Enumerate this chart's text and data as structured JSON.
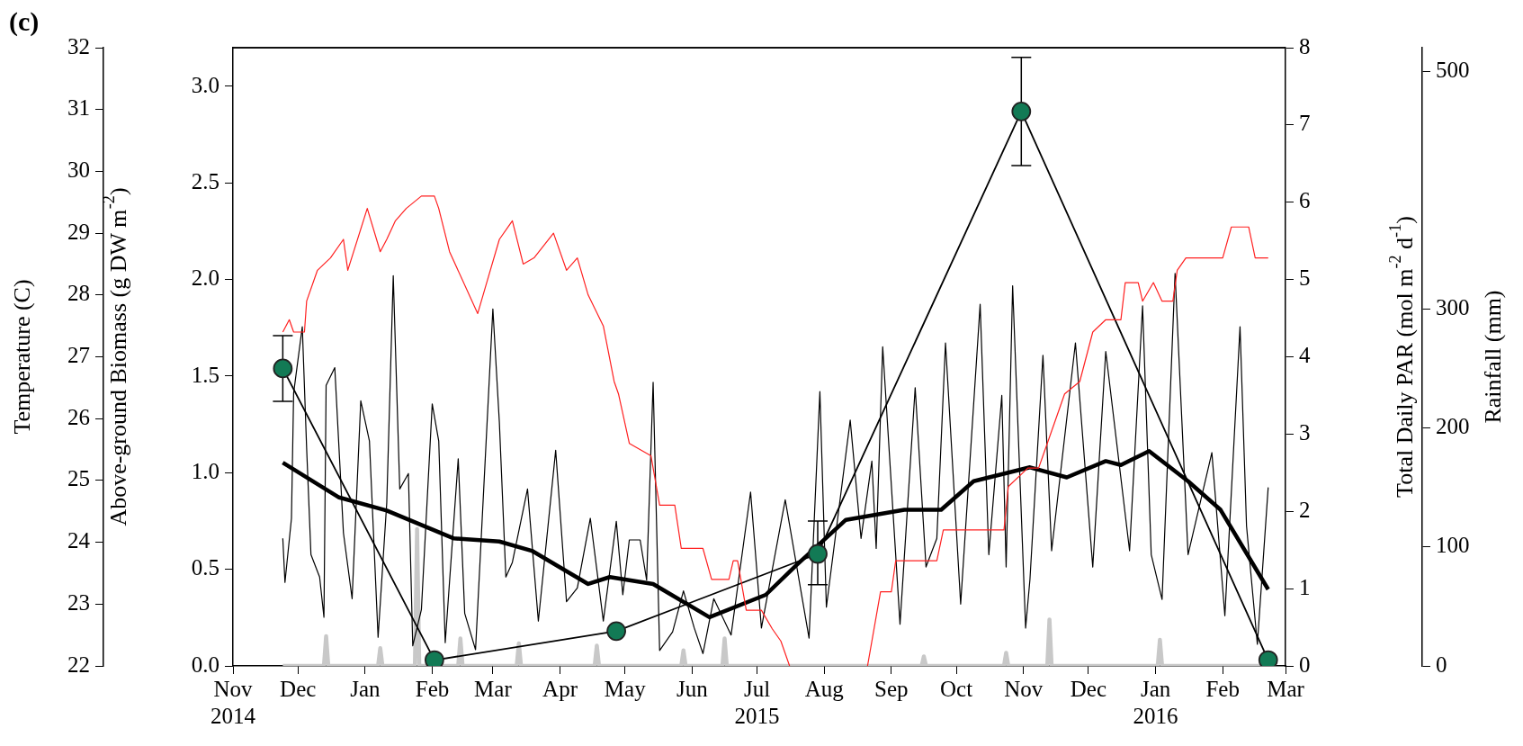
{
  "chart_data": [
    {
      "type": "line",
      "annotations": [
        "(c)"
      ],
      "xlim": [
        "2014-11-01",
        "2016-03-01"
      ],
      "xticks": [
        {
          "value": "2014-11-01",
          "label": "Nov\n2014"
        },
        {
          "value": "2014-12-01",
          "label": "Dec"
        },
        {
          "value": "2015-01-01",
          "label": "Jan"
        },
        {
          "value": "2015-02-01",
          "label": "Feb"
        },
        {
          "value": "2015-03-01",
          "label": "Mar"
        },
        {
          "value": "2015-04-01",
          "label": "Apr"
        },
        {
          "value": "2015-05-01",
          "label": "May"
        },
        {
          "value": "2015-06-01",
          "label": "Jun"
        },
        {
          "value": "2015-07-01",
          "label": "Jul\n2015"
        },
        {
          "value": "2015-08-01",
          "label": "Aug"
        },
        {
          "value": "2015-09-01",
          "label": "Sep"
        },
        {
          "value": "2015-10-01",
          "label": "Oct"
        },
        {
          "value": "2015-11-01",
          "label": "Nov"
        },
        {
          "value": "2015-12-01",
          "label": "Dec"
        },
        {
          "value": "2016-01-01",
          "label": "Jan\n2016"
        },
        {
          "value": "2016-02-01",
          "label": "Feb"
        },
        {
          "value": "2016-03-01",
          "label": "Mar"
        }
      ],
      "ylabel": "Above-ground Biomass (g DW m$^{-2}$)",
      "ylim": [
        0,
        3.2
      ],
      "yticks": [
        {
          "value": 0,
          "label": "0.0"
        },
        {
          "value": 0.5,
          "label": "0.5"
        },
        {
          "value": 1,
          "label": "1.0"
        },
        {
          "value": 1.5,
          "label": "1.5"
        },
        {
          "value": 2,
          "label": "2.0"
        },
        {
          "value": 2.5,
          "label": "2.5"
        },
        {
          "value": 3,
          "label": "3.0"
        }
      ],
      "y2label": "Total Daily PAR (mol m$^{-2}$ d$^{-1}$)",
      "y2lim": [
        0,
        8
      ],
      "y2ticks": [
        0,
        1,
        2,
        3,
        4,
        5,
        6,
        7,
        8
      ],
      "y3label": "Rainfall (mm)",
      "y3lim": [
        0,
        520
      ],
      "y3ticks": [
        0,
        100,
        200,
        300,
        500
      ],
      "grid": false,
      "legend": false,
      "marker": "none",
      "series": [
        {
          "axis": "y3",
          "color": "#c8c8c8",
          "x": [
            "2014-11-24",
            "2014-12-13",
            "2014-12-14",
            "2014-12-15",
            "2015-01-07",
            "2015-01-08",
            "2015-01-09",
            "2015-01-24",
            "2015-01-25",
            "2015-01-26",
            "2015-02-13",
            "2015-02-14",
            "2015-02-15",
            "2015-03-12",
            "2015-03-13",
            "2015-03-14",
            "2015-04-17",
            "2015-04-18",
            "2015-04-19",
            "2015-05-27",
            "2015-05-28",
            "2015-05-29",
            "2015-06-15",
            "2015-06-16",
            "2015-06-17",
            "2015-09-15",
            "2015-09-16",
            "2015-09-17",
            "2015-10-23",
            "2015-10-24",
            "2015-10-25",
            "2015-11-12",
            "2015-11-13",
            "2015-11-14",
            "2016-01-02",
            "2016-01-03",
            "2016-01-04",
            "2016-02-22"
          ],
          "values": [
            0,
            0,
            25,
            0,
            0,
            15,
            0,
            0,
            115,
            0,
            0,
            23,
            0,
            0,
            19,
            0,
            0,
            17,
            0,
            0,
            13,
            0,
            0,
            23,
            0,
            0,
            8,
            0,
            0,
            11,
            0,
            0,
            39,
            0,
            0,
            22,
            0,
            0
          ]
        },
        {
          "axis": "y2",
          "color": "#000000",
          "x": [
            "2014-11-24",
            "2014-11-25",
            "2014-11-28",
            "2014-11-29",
            "2014-12-03",
            "2014-12-05",
            "2014-12-07",
            "2014-12-11",
            "2014-12-13",
            "2014-12-14",
            "2014-12-18",
            "2014-12-22",
            "2014-12-26",
            "2014-12-30",
            "2015-01-03",
            "2015-01-07",
            "2015-01-11",
            "2015-01-14",
            "2015-01-17",
            "2015-01-21",
            "2015-01-23",
            "2015-01-27",
            "2015-02-01",
            "2015-02-04",
            "2015-02-07",
            "2015-02-13",
            "2015-02-16",
            "2015-02-21",
            "2015-03-01",
            "2015-03-04",
            "2015-03-07",
            "2015-03-10",
            "2015-03-17",
            "2015-03-22",
            "2015-03-30",
            "2015-04-04",
            "2015-04-09",
            "2015-04-15",
            "2015-04-21",
            "2015-04-27",
            "2015-04-30",
            "2015-05-03",
            "2015-05-08",
            "2015-05-11",
            "2015-05-14",
            "2015-05-17",
            "2015-05-23",
            "2015-05-28",
            "2015-06-02",
            "2015-06-06",
            "2015-06-11",
            "2015-06-19",
            "2015-06-28",
            "2015-07-03",
            "2015-07-14",
            "2015-07-25",
            "2015-07-30",
            "2015-08-02",
            "2015-08-13",
            "2015-08-18",
            "2015-08-23",
            "2015-08-25",
            "2015-08-28",
            "2015-09-05",
            "2015-09-12",
            "2015-09-17",
            "2015-09-22",
            "2015-09-26",
            "2015-10-03",
            "2015-10-12",
            "2015-10-16",
            "2015-10-22",
            "2015-10-24",
            "2015-10-27",
            "2015-11-02",
            "2015-11-04",
            "2015-11-10",
            "2015-11-14",
            "2015-11-25",
            "2015-12-03",
            "2015-12-09",
            "2015-12-20",
            "2015-12-26",
            "2015-12-30",
            "2016-01-04",
            "2016-01-10",
            "2016-01-16",
            "2016-01-27",
            "2016-02-02",
            "2016-02-09",
            "2016-02-12",
            "2016-02-17",
            "2016-02-22"
          ],
          "values": [
            1.65,
            1.08,
            1.91,
            3.53,
            4.39,
            2.82,
            1.44,
            1.15,
            0.63,
            3.63,
            3.86,
            1.72,
            0.87,
            3.43,
            2.91,
            0.37,
            2.11,
            5.05,
            2.29,
            2.49,
            0.26,
            0.73,
            3.39,
            2.91,
            0.3,
            2.68,
            0.68,
            0.21,
            4.62,
            3.15,
            1.15,
            1.34,
            2.29,
            0.58,
            2.79,
            0.83,
            1.01,
            1.91,
            0.58,
            1.87,
            0.92,
            1.63,
            1.63,
            1.11,
            3.67,
            0.2,
            0.44,
            0.97,
            0.49,
            0.16,
            0.87,
            0.4,
            2.25,
            0.49,
            2.15,
            0.36,
            3.55,
            0.76,
            3.18,
            1.65,
            2.65,
            1.52,
            4.13,
            0.54,
            3.6,
            1.28,
            1.65,
            4.18,
            0.8,
            4.68,
            1.44,
            3.5,
            1.28,
            4.92,
            0.49,
            1.12,
            4.02,
            1.49,
            4.18,
            1.28,
            4.07,
            1.49,
            4.66,
            1.44,
            0.86,
            5.08,
            1.44,
            2.76,
            0.65,
            4.39,
            1.81,
            0.28,
            2.31
          ]
        },
        {
          "axis": "y2",
          "color": "#000000",
          "x": [
            "2014-11-24",
            "2014-12-20",
            "2015-01-11",
            "2015-02-11",
            "2015-03-04",
            "2015-03-19",
            "2015-04-14",
            "2015-04-24",
            "2015-05-14",
            "2015-06-09",
            "2015-07-05",
            "2015-07-19",
            "2015-08-11",
            "2015-09-07",
            "2015-09-24",
            "2015-10-09",
            "2015-11-04",
            "2015-11-21",
            "2015-12-09",
            "2015-12-16",
            "2015-12-29",
            "2016-01-16",
            "2016-01-31",
            "2016-02-22"
          ],
          "values": [
            2.63,
            2.18,
            2.01,
            1.65,
            1.61,
            1.49,
            1.06,
            1.15,
            1.06,
            0.63,
            0.92,
            1.3,
            1.89,
            2.02,
            2.02,
            2.39,
            2.57,
            2.44,
            2.65,
            2.6,
            2.78,
            2.39,
            2.02,
            0.99
          ]
        },
        {
          "color": "#127a55",
          "marker": "circle",
          "x": [
            "2014-11-24",
            "2015-02-02",
            "2015-04-27",
            "2015-07-29",
            "2015-10-31",
            "2016-02-22"
          ],
          "values": [
            1.54,
            0.03,
            0.18,
            0.58,
            2.87,
            0.03
          ],
          "errors": [
            [
              1.37,
              1.71
            ],
            null,
            null,
            [
              0.42,
              0.75
            ],
            [
              2.59,
              3.15
            ],
            null
          ]
        }
      ]
    },
    {
      "type": "line",
      "xlim": [
        "2014-11-01",
        "2016-03-01"
      ],
      "tick_labels": "y",
      "ylabel": "Temperature (C)",
      "ylim": [
        22,
        32
      ],
      "yticks": [
        22,
        23,
        24,
        25,
        26,
        27,
        28,
        29,
        30,
        31,
        32
      ],
      "grid": false,
      "legend": false,
      "marker": "none",
      "series": [
        {
          "color": "#ff2020",
          "x": [
            "2014-11-24",
            "2014-11-27",
            "2014-11-29",
            "2014-12-04",
            "2014-12-05",
            "2014-12-10",
            "2014-12-16",
            "2014-12-22",
            "2014-12-24",
            "2015-01-02",
            "2015-01-08",
            "2015-01-11",
            "2015-01-15",
            "2015-01-20",
            "2015-01-27",
            "2015-02-02",
            "2015-02-04",
            "2015-02-09",
            "2015-02-22",
            "2015-02-27",
            "2015-03-04",
            "2015-03-10",
            "2015-03-15",
            "2015-03-20",
            "2015-03-29",
            "2015-04-04",
            "2015-04-09",
            "2015-04-14",
            "2015-04-21",
            "2015-04-26",
            "2015-04-28",
            "2015-05-03",
            "2015-05-13",
            "2015-05-17",
            "2015-05-24",
            "2015-05-27",
            "2015-06-06",
            "2015-06-10",
            "2015-06-18",
            "2015-06-20",
            "2015-06-22",
            "2015-06-26",
            "2015-07-03",
            "2015-07-08",
            "2015-07-12",
            "2015-07-16",
            "2015-08-03",
            "2015-08-21",
            "2015-08-27",
            "2015-09-01",
            "2015-09-03",
            "2015-09-22",
            "2015-09-25",
            "2015-10-23",
            "2015-10-25",
            "2015-11-03",
            "2015-11-08",
            "2015-11-14",
            "2015-11-20",
            "2015-11-27",
            "2015-12-03",
            "2015-12-09",
            "2015-12-16",
            "2015-12-18",
            "2015-12-24",
            "2015-12-26",
            "2015-12-31",
            "2016-01-04",
            "2016-01-09",
            "2016-01-11",
            "2016-01-15",
            "2016-02-01",
            "2016-02-05",
            "2016-02-13",
            "2016-02-16",
            "2016-02-22"
          ],
          "values": [
            27.4,
            27.6,
            27.4,
            27.4,
            27.9,
            28.4,
            28.6,
            28.9,
            28.4,
            29.4,
            28.7,
            28.9,
            29.2,
            29.4,
            29.6,
            29.6,
            29.4,
            28.7,
            27.7,
            28.3,
            28.9,
            29.2,
            28.5,
            28.6,
            29.0,
            28.4,
            28.6,
            28.0,
            27.5,
            26.6,
            26.4,
            25.6,
            25.4,
            24.6,
            24.6,
            23.9,
            23.9,
            23.4,
            23.4,
            23.7,
            23.7,
            22.9,
            22.9,
            22.6,
            22.4,
            22.0,
            null,
            22.0,
            23.2,
            23.2,
            23.7,
            23.7,
            24.2,
            24.2,
            24.9,
            25.2,
            25.2,
            25.8,
            26.4,
            26.6,
            27.4,
            27.6,
            27.6,
            28.2,
            28.2,
            27.9,
            28.2,
            27.9,
            27.9,
            28.4,
            28.6,
            28.6,
            29.1,
            29.1,
            28.6,
            28.6
          ]
        }
      ]
    }
  ]
}
